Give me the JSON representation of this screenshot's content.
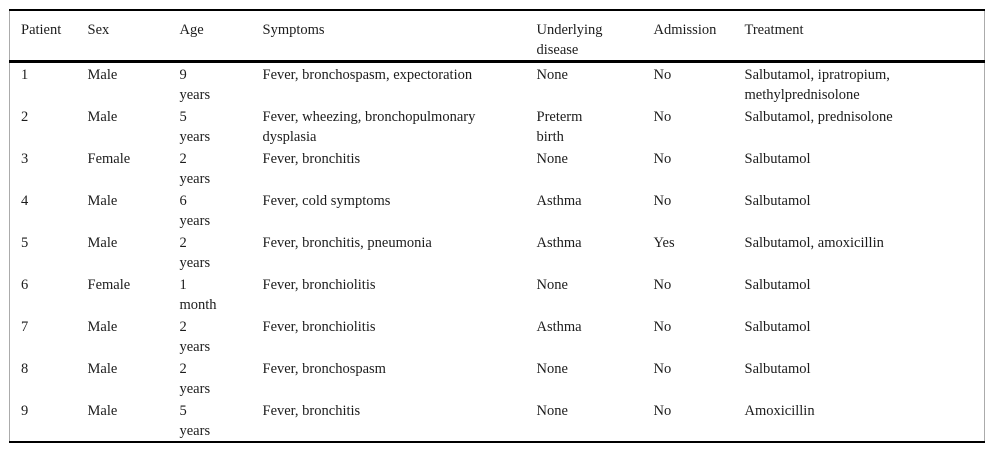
{
  "table": {
    "columns": [
      {
        "key": "patient",
        "label": "Patient"
      },
      {
        "key": "sex",
        "label": "Sex"
      },
      {
        "key": "age",
        "label": "Age"
      },
      {
        "key": "symptoms",
        "label": "Symptoms"
      },
      {
        "key": "underlying",
        "label": "Underlying\ndisease"
      },
      {
        "key": "admission",
        "label": "Admission"
      },
      {
        "key": "treatment",
        "label": "Treatment"
      }
    ],
    "rows": [
      {
        "patient": "1",
        "sex": "Male",
        "age": "9\nyears",
        "symptoms": "Fever, bronchospasm, expectoration",
        "underlying": "None",
        "admission": "No",
        "treatment": "Salbutamol, ipratropium,\nmethylprednisolone"
      },
      {
        "patient": "2",
        "sex": "Male",
        "age": "5\nyears",
        "symptoms": "Fever, wheezing, bronchopulmonary\ndysplasia",
        "underlying": "Preterm\nbirth",
        "admission": "No",
        "treatment": "Salbutamol, prednisolone"
      },
      {
        "patient": "3",
        "sex": "Female",
        "age": "2\nyears",
        "symptoms": "Fever, bronchitis",
        "underlying": "None",
        "admission": "No",
        "treatment": "Salbutamol"
      },
      {
        "patient": "4",
        "sex": "Male",
        "age": "6\nyears",
        "symptoms": "Fever, cold symptoms",
        "underlying": "Asthma",
        "admission": "No",
        "treatment": "Salbutamol"
      },
      {
        "patient": "5",
        "sex": "Male",
        "age": "2\nyears",
        "symptoms": "Fever, bronchitis, pneumonia",
        "underlying": "Asthma",
        "admission": "Yes",
        "treatment": "Salbutamol, amoxicillin"
      },
      {
        "patient": "6",
        "sex": "Female",
        "age": "1\nmonth",
        "symptoms": "Fever, bronchiolitis",
        "underlying": "None",
        "admission": "No",
        "treatment": "Salbutamol"
      },
      {
        "patient": "7",
        "sex": "Male",
        "age": "2\nyears",
        "symptoms": "Fever, bronchiolitis",
        "underlying": "Asthma",
        "admission": "No",
        "treatment": "Salbutamol"
      },
      {
        "patient": "8",
        "sex": "Male",
        "age": "2\nyears",
        "symptoms": "Fever, bronchospasm",
        "underlying": "None",
        "admission": "No",
        "treatment": "Salbutamol"
      },
      {
        "patient": "9",
        "sex": "Male",
        "age": "5\nyears",
        "symptoms": "Fever, bronchitis",
        "underlying": "None",
        "admission": "No",
        "treatment": "Amoxicillin"
      }
    ]
  },
  "colors": {
    "horizontal_rule": "#000000",
    "side_border": "#ababab",
    "text": "#1c1c1c",
    "background": "#ffffff"
  }
}
